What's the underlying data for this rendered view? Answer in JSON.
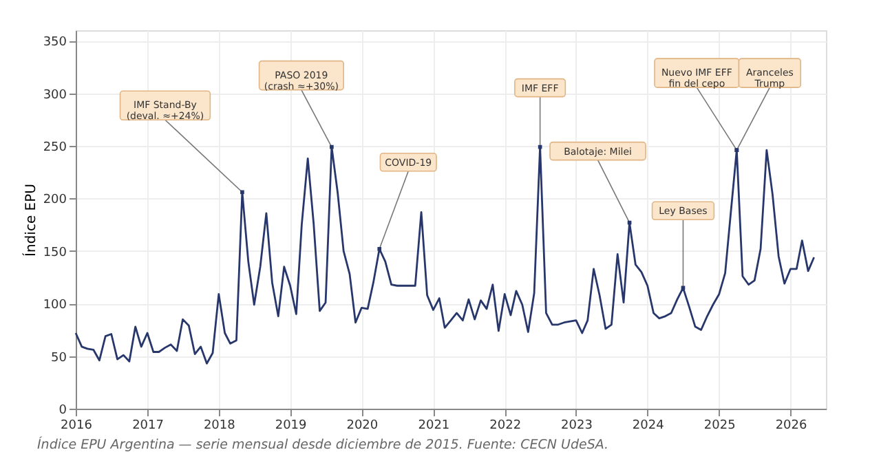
{
  "chart_data": {
    "type": "line",
    "ylabel": "Índice EPU",
    "x": [
      "2016-01",
      "2016-02",
      "2016-03",
      "2016-04",
      "2016-05",
      "2016-06",
      "2016-07",
      "2016-08",
      "2016-09",
      "2016-10",
      "2016-11",
      "2016-12",
      "2017-01",
      "2017-02",
      "2017-03",
      "2017-04",
      "2017-05",
      "2017-06",
      "2017-07",
      "2017-08",
      "2017-09",
      "2017-10",
      "2017-11",
      "2017-12",
      "2018-01",
      "2018-02",
      "2018-03",
      "2018-04",
      "2018-05",
      "2018-06",
      "2018-07",
      "2018-08",
      "2018-09",
      "2018-10",
      "2018-11",
      "2018-12",
      "2019-01",
      "2019-02",
      "2019-03",
      "2019-04",
      "2019-05",
      "2019-06",
      "2019-07",
      "2019-08",
      "2019-09",
      "2019-10",
      "2019-11",
      "2019-12",
      "2020-01",
      "2020-02",
      "2020-03",
      "2020-04",
      "2020-05",
      "2020-06",
      "2020-07",
      "2020-08",
      "2020-09",
      "2020-10",
      "2020-11",
      "2020-12",
      "2021-01",
      "2021-02",
      "2021-03",
      "2021-04",
      "2021-05",
      "2021-06",
      "2021-07",
      "2021-08",
      "2021-09",
      "2021-10",
      "2021-11",
      "2021-12",
      "2022-01",
      "2022-02",
      "2022-03",
      "2022-04",
      "2022-05",
      "2022-06",
      "2022-07",
      "2022-08",
      "2022-09",
      "2022-10",
      "2022-11",
      "2022-12",
      "2023-01",
      "2023-02",
      "2023-03",
      "2023-04",
      "2023-05",
      "2023-06",
      "2023-07",
      "2023-08",
      "2023-09",
      "2023-10",
      "2023-11",
      "2023-12",
      "2024-01",
      "2024-02",
      "2024-03",
      "2024-04",
      "2024-05",
      "2024-06",
      "2024-07",
      "2024-08",
      "2024-09",
      "2024-10",
      "2024-11",
      "2024-12",
      "2025-01",
      "2025-02",
      "2025-03",
      "2025-04",
      "2025-05",
      "2025-06",
      "2025-07",
      "2025-08",
      "2025-09",
      "2025-10",
      "2025-11",
      "2025-12",
      "2026-01",
      "2026-02",
      "2026-03",
      "2026-04",
      "2026-05"
    ],
    "series": [
      {
        "color": "#27376b",
        "values": [
          72,
          59,
          57,
          56,
          46,
          69,
          71,
          47,
          51,
          45,
          78,
          59,
          72,
          54,
          54,
          58,
          61,
          55,
          85,
          79,
          52,
          59,
          43,
          53,
          109,
          72,
          62,
          65,
          206,
          140,
          99,
          135,
          186,
          120,
          88,
          135,
          117,
          90,
          175,
          238,
          176,
          93,
          101,
          249,
          205,
          150,
          128,
          82,
          96,
          95,
          120,
          152,
          140,
          118,
          117,
          117,
          117,
          117,
          187,
          108,
          94,
          105,
          77,
          84,
          91,
          84,
          104,
          85,
          103,
          95,
          118,
          74,
          109,
          89,
          112,
          99,
          73,
          110,
          249,
          91,
          80,
          80,
          82,
          83,
          84,
          72,
          84,
          133,
          108,
          76,
          80,
          147,
          101,
          177,
          137,
          130,
          117,
          91,
          86,
          88,
          91,
          104,
          115,
          97,
          78,
          75,
          88,
          99,
          109,
          129,
          185,
          246,
          126,
          118,
          122,
          152,
          246,
          204,
          145,
          119,
          133,
          133,
          160,
          131,
          144
        ]
      }
    ],
    "xlim": [
      "2016-01",
      "2026-07"
    ],
    "xticks": [
      "2016",
      "2017",
      "2018",
      "2019",
      "2020",
      "2021",
      "2022",
      "2023",
      "2024",
      "2025",
      "2026"
    ],
    "ylim": [
      0,
      360
    ],
    "yticks": [
      0,
      50,
      100,
      150,
      200,
      250,
      300,
      350
    ],
    "grid": true,
    "annotations": [
      {
        "text": "IMF Stand-By\n(deval. ≈+24%)",
        "x": "2018-05",
        "y": 206
      },
      {
        "text": "PASO 2019\n(crash ≈+30%)",
        "x": "2019-08",
        "y": 249
      },
      {
        "text": "COVID-19",
        "x": "2020-04",
        "y": 152
      },
      {
        "text": "IMF EFF",
        "x": "2022-07",
        "y": 249
      },
      {
        "text": "Balotaje: Milei",
        "x": "2023-10",
        "y": 177
      },
      {
        "text": "Ley Bases",
        "x": "2024-07",
        "y": 115
      },
      {
        "text": "Nuevo IMF EFF\nfin del cepo",
        "x": "2025-04",
        "y": 246
      },
      {
        "text": "Aranceles\nTrump",
        "x": "2025-04",
        "y": 246
      },
      "Índice EPU Argentina — serie mensual desde diciembre de 2015. Fuente: CECN UdeSA."
    ]
  }
}
